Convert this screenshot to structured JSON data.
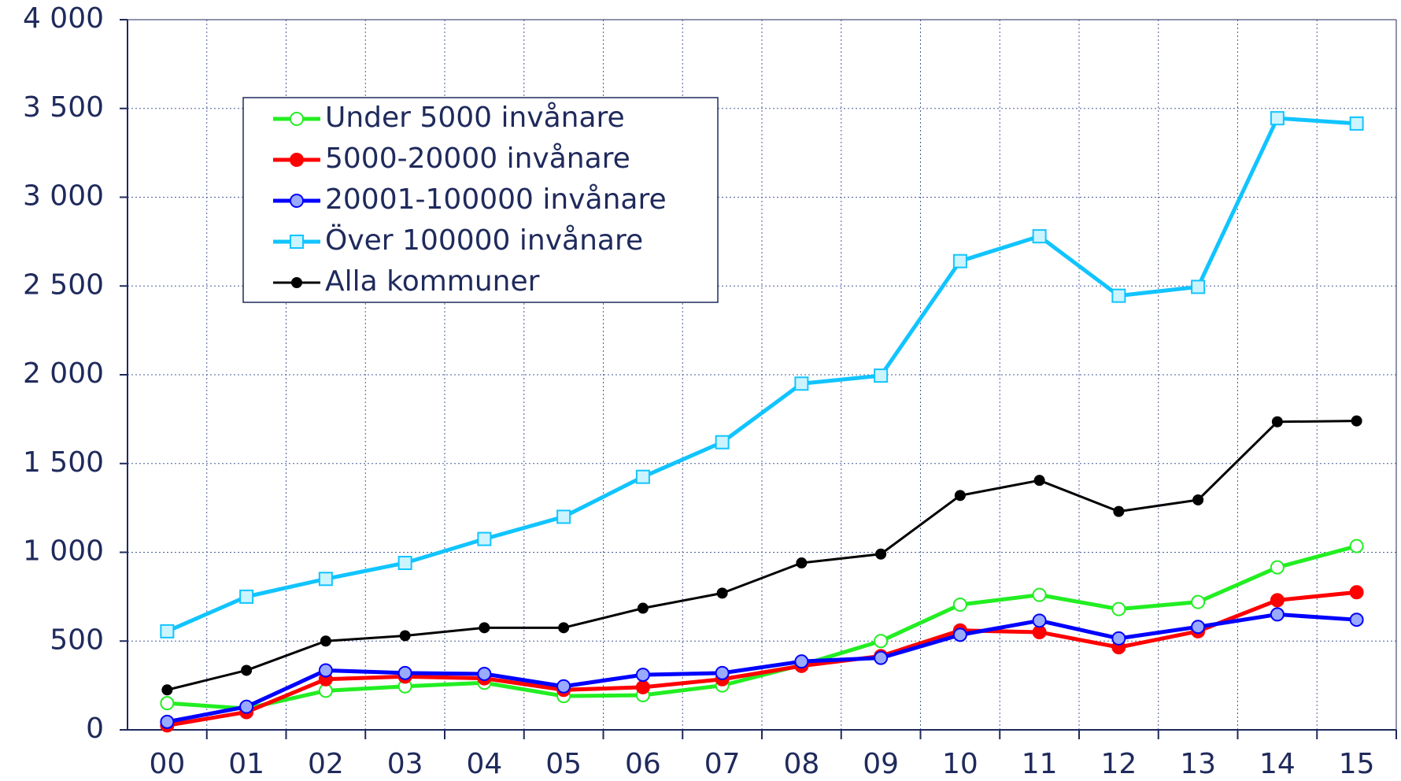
{
  "chart_data": {
    "type": "line",
    "categories": [
      "00",
      "01",
      "02",
      "03",
      "04",
      "05",
      "06",
      "07",
      "08",
      "09",
      "10",
      "11",
      "12",
      "13",
      "14",
      "15"
    ],
    "series": [
      {
        "name": "Under 5000 invånare",
        "color": "#22ee22",
        "marker": "circle",
        "marker_fill": "#ffffff",
        "values": [
          150,
          120,
          220,
          245,
          265,
          190,
          195,
          250,
          365,
          500,
          705,
          760,
          680,
          720,
          915,
          1035
        ]
      },
      {
        "name": "5000-20000 invånare",
        "color": "#ff0000",
        "marker": "circle",
        "marker_fill": "#ff0000",
        "values": [
          25,
          100,
          285,
          300,
          290,
          225,
          240,
          285,
          360,
          415,
          560,
          550,
          465,
          555,
          730,
          775
        ]
      },
      {
        "name": "20001-100000 invånare",
        "color": "#0000ff",
        "marker": "circle",
        "marker_fill": "#99aaff",
        "values": [
          45,
          130,
          335,
          320,
          315,
          245,
          310,
          320,
          385,
          405,
          535,
          615,
          515,
          580,
          650,
          620
        ]
      },
      {
        "name": "Över 100000 invånare",
        "color": "#11c4ff",
        "marker": "square",
        "marker_fill": "#ccf4ff",
        "values": [
          555,
          750,
          850,
          940,
          1075,
          1200,
          1425,
          1620,
          1950,
          1995,
          2640,
          2780,
          2445,
          2495,
          3445,
          3415
        ]
      },
      {
        "name": "Alla kommuner",
        "color": "#000000",
        "marker": "dot",
        "marker_fill": "#000000",
        "values": [
          225,
          335,
          500,
          530,
          575,
          575,
          685,
          770,
          940,
          990,
          1320,
          1405,
          1230,
          1295,
          1735,
          1740
        ]
      }
    ],
    "ylim": [
      0,
      4000
    ],
    "yticks": [
      0,
      500,
      {
        "value": 1000,
        "label": "1 000"
      },
      {
        "value": 1500,
        "label": "1 500"
      },
      {
        "value": 2000,
        "label": "2 000"
      },
      {
        "value": 2500,
        "label": "2 500"
      },
      {
        "value": 3000,
        "label": "3 000"
      },
      {
        "value": 3500,
        "label": "3 500"
      },
      {
        "value": 4000,
        "label": "4 000"
      }
    ],
    "grid": true,
    "legend": "upper left"
  }
}
